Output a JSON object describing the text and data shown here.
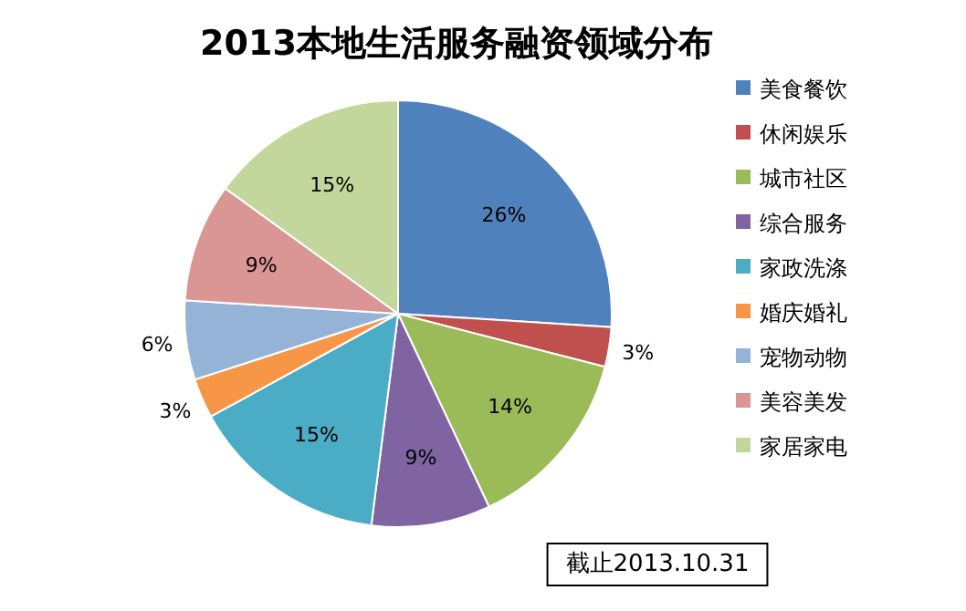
{
  "chart_data": {
    "type": "pie",
    "title": "2013本地生活服务融资领域分布",
    "categories": [
      "美食餐饮",
      "休闲娱乐",
      "城市社区",
      "综合服务",
      "家政洗涤",
      "婚庆婚礼",
      "宠物动物",
      "美容美发",
      "家居家电"
    ],
    "values": [
      26,
      3,
      14,
      9,
      15,
      3,
      6,
      9,
      15
    ],
    "value_labels": [
      "26%",
      "3%",
      "14%",
      "9%",
      "15%",
      "3%",
      "6%",
      "9%",
      "15%"
    ],
    "colors": [
      "#4f81bd",
      "#c0504d",
      "#9bbb59",
      "#8064a2",
      "#4bacc6",
      "#f79646",
      "#95b3d7",
      "#d99694",
      "#c3d69b"
    ],
    "legend": "right",
    "annotations": [
      "截止2013.10.31"
    ]
  }
}
